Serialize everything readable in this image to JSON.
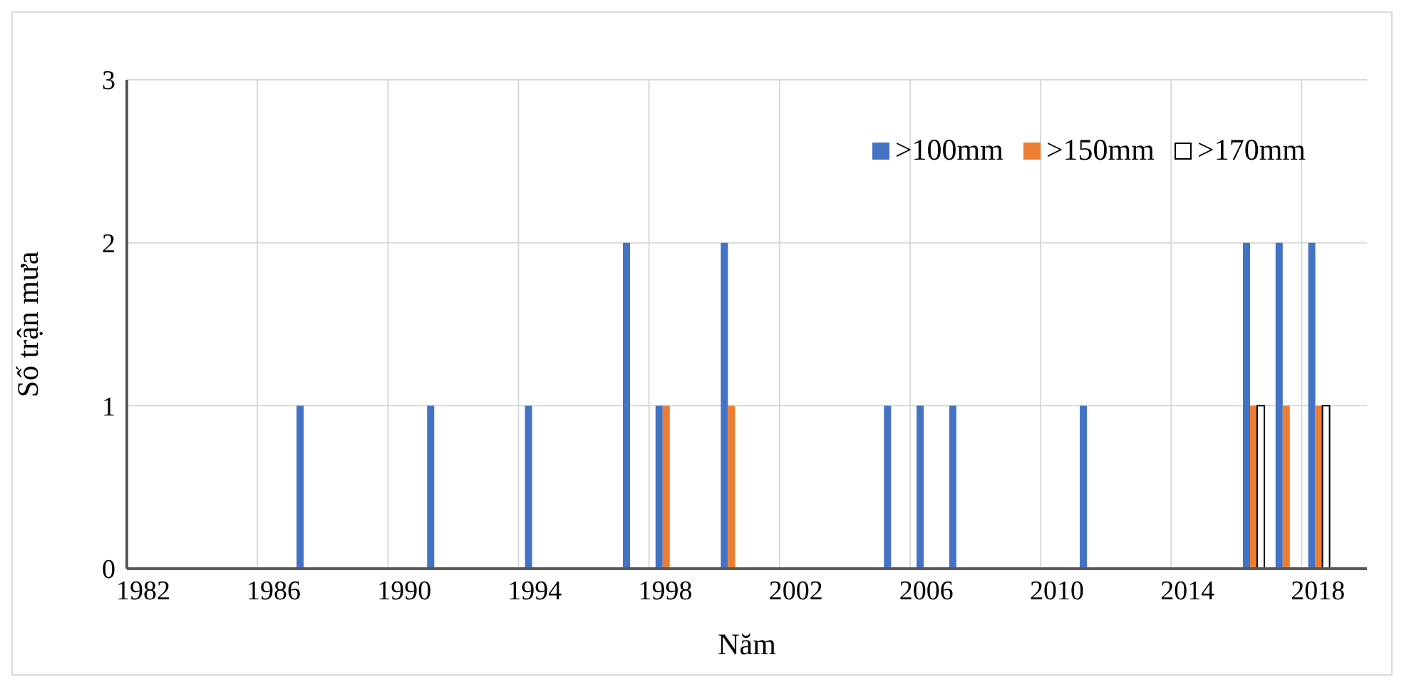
{
  "chart_data": {
    "type": "bar",
    "xlabel": "Năm",
    "ylabel": "Số trận mưa",
    "categories": [
      "1982",
      null,
      null,
      null,
      "1986",
      null,
      null,
      null,
      "1990",
      null,
      null,
      null,
      "1994",
      null,
      null,
      null,
      "1998",
      null,
      null,
      null,
      "2002",
      null,
      null,
      null,
      "2006",
      null,
      null,
      null,
      "2010",
      null,
      null,
      null,
      "2014",
      null,
      null,
      null,
      "2018",
      null
    ],
    "series": [
      {
        "name": ">100mm",
        "color": "#4472c4",
        "values": [
          0,
          0,
          0,
          0,
          0,
          1,
          0,
          0,
          0,
          1,
          0,
          0,
          1,
          0,
          0,
          2,
          1,
          0,
          2,
          0,
          0,
          0,
          0,
          1,
          1,
          1,
          0,
          0,
          0,
          1,
          0,
          0,
          0,
          0,
          2,
          2,
          2,
          0
        ]
      },
      {
        "name": ">150mm",
        "color": "#ed7d31",
        "values": [
          0,
          0,
          0,
          0,
          0,
          0,
          0,
          0,
          0,
          0,
          0,
          0,
          0,
          0,
          0,
          0,
          1,
          0,
          1,
          0,
          0,
          0,
          0,
          0,
          0,
          0,
          0,
          0,
          0,
          0,
          0,
          0,
          0,
          0,
          1,
          1,
          1,
          0
        ]
      },
      {
        "name": ">170mm",
        "color": "#ffffff",
        "values": [
          0,
          0,
          0,
          0,
          0,
          0,
          0,
          0,
          0,
          0,
          0,
          0,
          0,
          0,
          0,
          0,
          0,
          0,
          0,
          0,
          0,
          0,
          0,
          0,
          0,
          0,
          0,
          0,
          0,
          0,
          0,
          0,
          0,
          0,
          1,
          0,
          1,
          0
        ]
      }
    ],
    "ylim": [
      0,
      3
    ],
    "yticks": [
      0,
      1,
      2,
      3
    ],
    "grid": true,
    "legend": "top right"
  }
}
